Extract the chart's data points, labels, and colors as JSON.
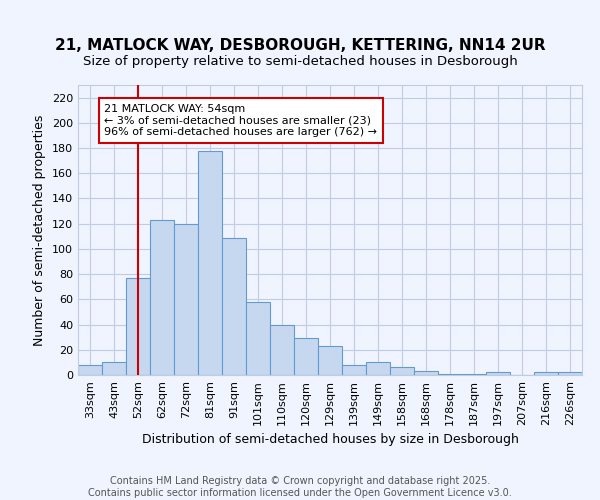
{
  "title_line1": "21, MATLOCK WAY, DESBOROUGH, KETTERING, NN14 2UR",
  "title_line2": "Size of property relative to semi-detached houses in Desborough",
  "xlabel": "Distribution of semi-detached houses by size in Desborough",
  "ylabel": "Number of semi-detached properties",
  "categories": [
    "33sqm",
    "43sqm",
    "52sqm",
    "62sqm",
    "72sqm",
    "81sqm",
    "91sqm",
    "101sqm",
    "110sqm",
    "120sqm",
    "129sqm",
    "139sqm",
    "149sqm",
    "158sqm",
    "168sqm",
    "178sqm",
    "187sqm",
    "197sqm",
    "207sqm",
    "216sqm",
    "226sqm"
  ],
  "values": [
    8,
    10,
    77,
    123,
    120,
    178,
    109,
    58,
    40,
    29,
    23,
    8,
    10,
    6,
    3,
    1,
    1,
    2,
    0,
    2,
    2
  ],
  "bar_color": "#c5d8f0",
  "bar_edge_color": "#6699cc",
  "highlight_index": 2,
  "highlight_color": "#cc0000",
  "annotation_text": "21 MATLOCK WAY: 54sqm\n← 3% of semi-detached houses are smaller (23)\n96% of semi-detached houses are larger (762) →",
  "annotation_box_color": "#ffffff",
  "annotation_box_edge_color": "#cc0000",
  "ylim": [
    0,
    230
  ],
  "yticks": [
    0,
    20,
    40,
    60,
    80,
    100,
    120,
    140,
    160,
    180,
    200,
    220
  ],
  "footer_text": "Contains HM Land Registry data © Crown copyright and database right 2025.\nContains public sector information licensed under the Open Government Licence v3.0.",
  "bg_color": "#f0f4ff",
  "grid_color": "#c0cce0",
  "title_fontsize": 11,
  "subtitle_fontsize": 9.5,
  "axis_label_fontsize": 9,
  "tick_fontsize": 8,
  "annotation_fontsize": 8,
  "footer_fontsize": 7
}
